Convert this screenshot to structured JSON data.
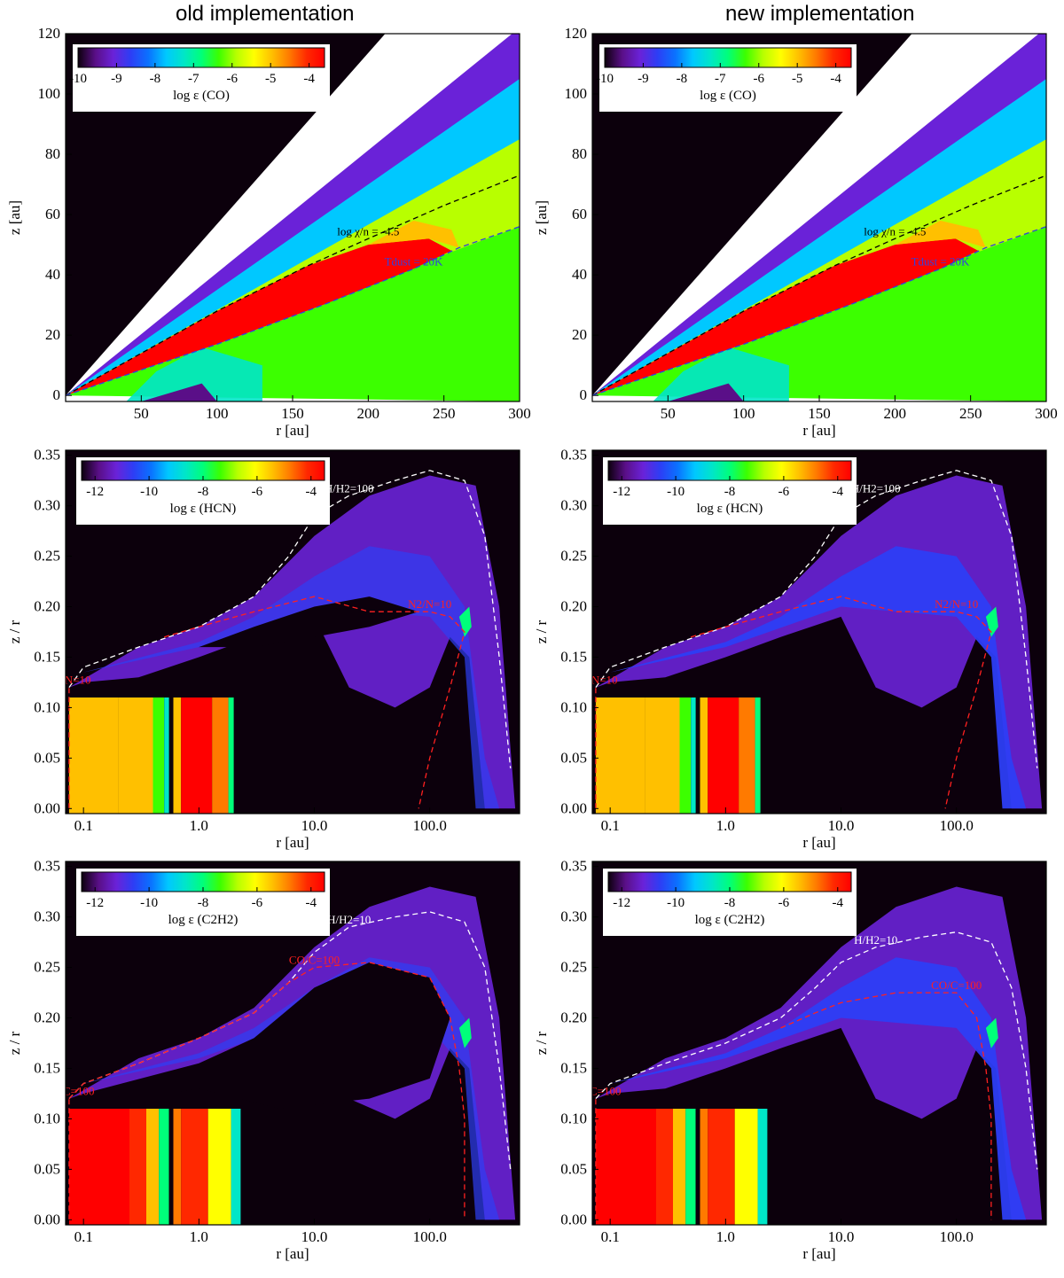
{
  "columns": {
    "left_title": "old implementation",
    "right_title": "new implementation"
  },
  "colors": {
    "background": "#0c000c",
    "colormap": [
      "#0c000c",
      "#5a0f88",
      "#6a22d8",
      "#2d3ef5",
      "#0a72ff",
      "#00c8ff",
      "#00e6c8",
      "#00ff7a",
      "#3cff00",
      "#b8ff00",
      "#ffff00",
      "#ffc000",
      "#ff7a00",
      "#ff2800",
      "#ff0000"
    ],
    "contour_black": "#000000",
    "contour_blue": "#3040e0",
    "contour_white": "#ffffff",
    "contour_red": "#ff2020"
  },
  "chart_data": [
    {
      "id": "co-old",
      "type": "heatmap",
      "panel_title": "old implementation",
      "quantity": "log ε (CO)",
      "xlabel": "r [au]",
      "ylabel": "z [au]",
      "x_ticks": [
        "50",
        "100",
        "150",
        "200",
        "250",
        "300"
      ],
      "y_ticks": [
        "0",
        "20",
        "40",
        "60",
        "80",
        "100",
        "120"
      ],
      "xlim": [
        0,
        300
      ],
      "ylim": [
        -2,
        120
      ],
      "colorbar": {
        "label": "log ε (CO)",
        "ticks": [
          "-10",
          "-9",
          "-8",
          "-7",
          "-6",
          "-5",
          "-4"
        ],
        "range": [
          -10,
          -3.6
        ]
      },
      "contours": [
        {
          "label": "log χ/n = -4.5",
          "color": "black",
          "points": [
            [
              0,
              0
            ],
            [
              100,
              28
            ],
            [
              160,
              43
            ],
            [
              200,
              52
            ],
            [
              250,
              63
            ],
            [
              300,
              73
            ]
          ]
        },
        {
          "label": "Tdust = 20K",
          "color": "blue",
          "points": [
            [
              0,
              0
            ],
            [
              100,
              17
            ],
            [
              170,
              30
            ],
            [
              230,
              42
            ],
            [
              260,
              49
            ],
            [
              300,
              56
            ]
          ]
        }
      ]
    },
    {
      "id": "co-new",
      "type": "heatmap",
      "panel_title": "new implementation",
      "quantity": "log ε (CO)",
      "xlabel": "r [au]",
      "ylabel": "z [au]",
      "x_ticks": [
        "50",
        "100",
        "150",
        "200",
        "250",
        "300"
      ],
      "y_ticks": [
        "0",
        "20",
        "40",
        "60",
        "80",
        "100",
        "120"
      ],
      "xlim": [
        0,
        300
      ],
      "ylim": [
        -2,
        120
      ],
      "colorbar": {
        "label": "log ε (CO)",
        "ticks": [
          "-10",
          "-9",
          "-8",
          "-7",
          "-6",
          "-5",
          "-4"
        ],
        "range": [
          -10,
          -3.6
        ]
      },
      "contours": [
        {
          "label": "log χ/n = -4.5",
          "color": "black",
          "points": [
            [
              0,
              0
            ],
            [
              100,
              28
            ],
            [
              160,
              43
            ],
            [
              200,
              52
            ],
            [
              250,
              63
            ],
            [
              300,
              73
            ]
          ]
        },
        {
          "label": "Tdust = 20K",
          "color": "blue",
          "points": [
            [
              0,
              0
            ],
            [
              100,
              17
            ],
            [
              170,
              30
            ],
            [
              230,
              42
            ],
            [
              260,
              49
            ],
            [
              300,
              56
            ]
          ]
        }
      ]
    },
    {
      "id": "hcn-old",
      "type": "heatmap",
      "quantity": "log ε (HCN)",
      "xlabel": "r [au]",
      "ylabel": "z / r",
      "x_ticks": [
        "0.1",
        "1.0",
        "10.0",
        "100.0"
      ],
      "y_ticks": [
        "0.00",
        "0.05",
        "0.10",
        "0.15",
        "0.20",
        "0.25",
        "0.30",
        "0.35"
      ],
      "xscale": "log",
      "xlim": [
        0.07,
        600
      ],
      "ylim": [
        -0.005,
        0.355
      ],
      "colorbar": {
        "label": "log ε (HCN)",
        "ticks": [
          "-12",
          "-10",
          "-8",
          "-6",
          "-4"
        ],
        "range": [
          -12.5,
          -3.5
        ]
      },
      "contours": [
        {
          "label": "H/H2=100",
          "color": "white",
          "points": [
            [
              0.075,
              0.12
            ],
            [
              0.1,
              0.14
            ],
            [
              0.3,
              0.16
            ],
            [
              1,
              0.18
            ],
            [
              3,
              0.21
            ],
            [
              6,
              0.25
            ],
            [
              10,
              0.29
            ],
            [
              20,
              0.31
            ],
            [
              50,
              0.325
            ],
            [
              100,
              0.335
            ],
            [
              200,
              0.325
            ],
            [
              300,
              0.27
            ],
            [
              400,
              0.15
            ],
            [
              500,
              0.04
            ]
          ]
        },
        {
          "label": "N2/N=10",
          "color": "red",
          "points": [
            [
              0.5,
              0.17
            ],
            [
              1,
              0.18
            ],
            [
              3,
              0.195
            ],
            [
              10,
              0.21
            ],
            [
              30,
              0.195
            ],
            [
              100,
              0.195
            ],
            [
              150,
              0.19
            ],
            [
              200,
              0.175
            ],
            [
              150,
              0.12
            ],
            [
              100,
              0.05
            ],
            [
              80,
              0.0
            ]
          ]
        },
        {
          "label": "N2/N=10",
          "color": "red",
          "points": [
            [
              0.075,
              0.0
            ],
            [
              0.075,
              0.12
            ]
          ]
        }
      ]
    },
    {
      "id": "hcn-new",
      "type": "heatmap",
      "quantity": "log ε (HCN)",
      "xlabel": "r [au]",
      "ylabel": "z / r",
      "x_ticks": [
        "0.1",
        "1.0",
        "10.0",
        "100.0"
      ],
      "y_ticks": [
        "0.00",
        "0.05",
        "0.10",
        "0.15",
        "0.20",
        "0.25",
        "0.30",
        "0.35"
      ],
      "xscale": "log",
      "xlim": [
        0.07,
        600
      ],
      "ylim": [
        -0.005,
        0.355
      ],
      "colorbar": {
        "label": "log ε (HCN)",
        "ticks": [
          "-12",
          "-10",
          "-8",
          "-6",
          "-4"
        ],
        "range": [
          -12.5,
          -3.5
        ]
      },
      "contours": [
        {
          "label": "H/H2=100",
          "color": "white",
          "points": [
            [
              0.075,
              0.12
            ],
            [
              0.1,
              0.14
            ],
            [
              0.3,
              0.16
            ],
            [
              1,
              0.18
            ],
            [
              3,
              0.21
            ],
            [
              6,
              0.25
            ],
            [
              10,
              0.29
            ],
            [
              20,
              0.31
            ],
            [
              50,
              0.325
            ],
            [
              100,
              0.335
            ],
            [
              200,
              0.325
            ],
            [
              300,
              0.27
            ],
            [
              400,
              0.15
            ],
            [
              500,
              0.04
            ]
          ]
        },
        {
          "label": "N2/N=10",
          "color": "red",
          "points": [
            [
              0.5,
              0.17
            ],
            [
              1,
              0.18
            ],
            [
              3,
              0.195
            ],
            [
              10,
              0.21
            ],
            [
              30,
              0.195
            ],
            [
              100,
              0.195
            ],
            [
              150,
              0.19
            ],
            [
              200,
              0.175
            ],
            [
              150,
              0.12
            ],
            [
              100,
              0.05
            ],
            [
              80,
              0.0
            ]
          ]
        },
        {
          "label": "N2/N=10",
          "color": "red",
          "points": [
            [
              0.075,
              0.0
            ],
            [
              0.075,
              0.12
            ]
          ]
        }
      ]
    },
    {
      "id": "c2h2-old",
      "type": "heatmap",
      "quantity": "log ε (C2H2)",
      "xlabel": "r [au]",
      "ylabel": "z / r",
      "x_ticks": [
        "0.1",
        "1.0",
        "10.0",
        "100.0"
      ],
      "y_ticks": [
        "0.00",
        "0.05",
        "0.10",
        "0.15",
        "0.20",
        "0.25",
        "0.30",
        "0.35"
      ],
      "xscale": "log",
      "xlim": [
        0.07,
        600
      ],
      "ylim": [
        -0.005,
        0.355
      ],
      "colorbar": {
        "label": "log ε (C2H2)",
        "ticks": [
          "-12",
          "-10",
          "-8",
          "-6",
          "-4"
        ],
        "range": [
          -12.5,
          -3.5
        ]
      },
      "contours": [
        {
          "label": "H/H2=10",
          "color": "white",
          "points": [
            [
              0.075,
              0.12
            ],
            [
              0.1,
              0.135
            ],
            [
              0.3,
              0.155
            ],
            [
              1,
              0.18
            ],
            [
              3,
              0.205
            ],
            [
              6,
              0.235
            ],
            [
              10,
              0.265
            ],
            [
              20,
              0.29
            ],
            [
              50,
              0.3
            ],
            [
              100,
              0.305
            ],
            [
              200,
              0.295
            ],
            [
              300,
              0.25
            ],
            [
              400,
              0.15
            ],
            [
              500,
              0.05
            ]
          ]
        },
        {
          "label": "CO/C=100",
          "color": "red",
          "points": [
            [
              0.075,
              0.12
            ],
            [
              0.1,
              0.135
            ],
            [
              0.3,
              0.155
            ],
            [
              1,
              0.18
            ],
            [
              3,
              0.205
            ],
            [
              6,
              0.235
            ],
            [
              10,
              0.25
            ],
            [
              30,
              0.255
            ],
            [
              100,
              0.24
            ],
            [
              150,
              0.2
            ],
            [
              180,
              0.15
            ],
            [
              200,
              0.1
            ],
            [
              200,
              0.0
            ]
          ]
        },
        {
          "label": "CO/C=100",
          "color": "red",
          "points": [
            [
              0.075,
              0.0
            ],
            [
              0.075,
              0.12
            ]
          ]
        }
      ]
    },
    {
      "id": "c2h2-new",
      "type": "heatmap",
      "quantity": "log ε (C2H2)",
      "xlabel": "r [au]",
      "ylabel": "z / r",
      "x_ticks": [
        "0.1",
        "1.0",
        "10.0",
        "100.0"
      ],
      "y_ticks": [
        "0.00",
        "0.05",
        "0.10",
        "0.15",
        "0.20",
        "0.25",
        "0.30",
        "0.35"
      ],
      "xscale": "log",
      "xlim": [
        0.07,
        600
      ],
      "ylim": [
        -0.005,
        0.355
      ],
      "colorbar": {
        "label": "log ε (C2H2)",
        "ticks": [
          "-12",
          "-10",
          "-8",
          "-6",
          "-4"
        ],
        "range": [
          -12.5,
          -3.5
        ]
      },
      "contours": [
        {
          "label": "H/H2=10",
          "color": "white",
          "points": [
            [
              0.075,
              0.12
            ],
            [
              0.1,
              0.135
            ],
            [
              0.3,
              0.155
            ],
            [
              1,
              0.175
            ],
            [
              3,
              0.2
            ],
            [
              6,
              0.23
            ],
            [
              10,
              0.255
            ],
            [
              20,
              0.27
            ],
            [
              50,
              0.28
            ],
            [
              100,
              0.285
            ],
            [
              200,
              0.275
            ],
            [
              300,
              0.23
            ],
            [
              400,
              0.15
            ],
            [
              500,
              0.05
            ]
          ]
        },
        {
          "label": "CO/C=100",
          "color": "red",
          "points": [
            [
              3,
              0.19
            ],
            [
              6,
              0.205
            ],
            [
              10,
              0.215
            ],
            [
              30,
              0.225
            ],
            [
              100,
              0.225
            ],
            [
              150,
              0.2
            ],
            [
              180,
              0.15
            ],
            [
              200,
              0.1
            ],
            [
              200,
              0.0
            ]
          ]
        },
        {
          "label": "CO/C=100",
          "color": "red",
          "points": [
            [
              0.075,
              0.0
            ],
            [
              0.075,
              0.12
            ]
          ]
        }
      ]
    }
  ]
}
